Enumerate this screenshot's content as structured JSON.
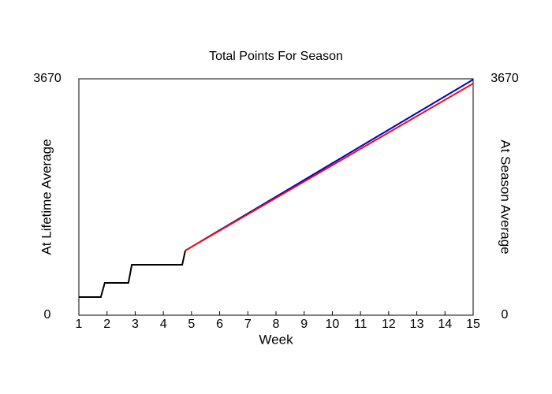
{
  "chart_data": {
    "type": "line",
    "title": "Total Points For Season",
    "x_label": "Week",
    "y_label": "At Lifetime Average",
    "y_label_color": "#0000cc",
    "y2_label": "At Season Average",
    "y2_label_color": "#ee1111",
    "xlim": [
      1,
      15
    ],
    "xticks": [
      1,
      2,
      3,
      4,
      5,
      6,
      7,
      8,
      9,
      10,
      11,
      12,
      13,
      14,
      15
    ],
    "ylim": [
      0,
      3670
    ],
    "yticks": [
      0,
      3670
    ],
    "y2lim": [
      0,
      3670
    ],
    "y2ticks": [
      0,
      3670
    ],
    "series": [
      {
        "color": "#000000",
        "x": [
          1,
          1.78,
          1.92,
          2.76,
          2.88,
          4.67,
          4.78
        ],
        "values": [
          281,
          281,
          502,
          502,
          783,
          783,
          1003
        ]
      },
      {
        "name": "At Lifetime Average",
        "color": "#0000cc",
        "x": [
          4.78,
          15
        ],
        "values": [
          1003,
          3658
        ]
      },
      {
        "name": "At Season Average",
        "color": "#ee1111",
        "axis": "y2",
        "x": [
          4.78,
          15
        ],
        "values": [
          1003,
          3597
        ]
      }
    ]
  }
}
